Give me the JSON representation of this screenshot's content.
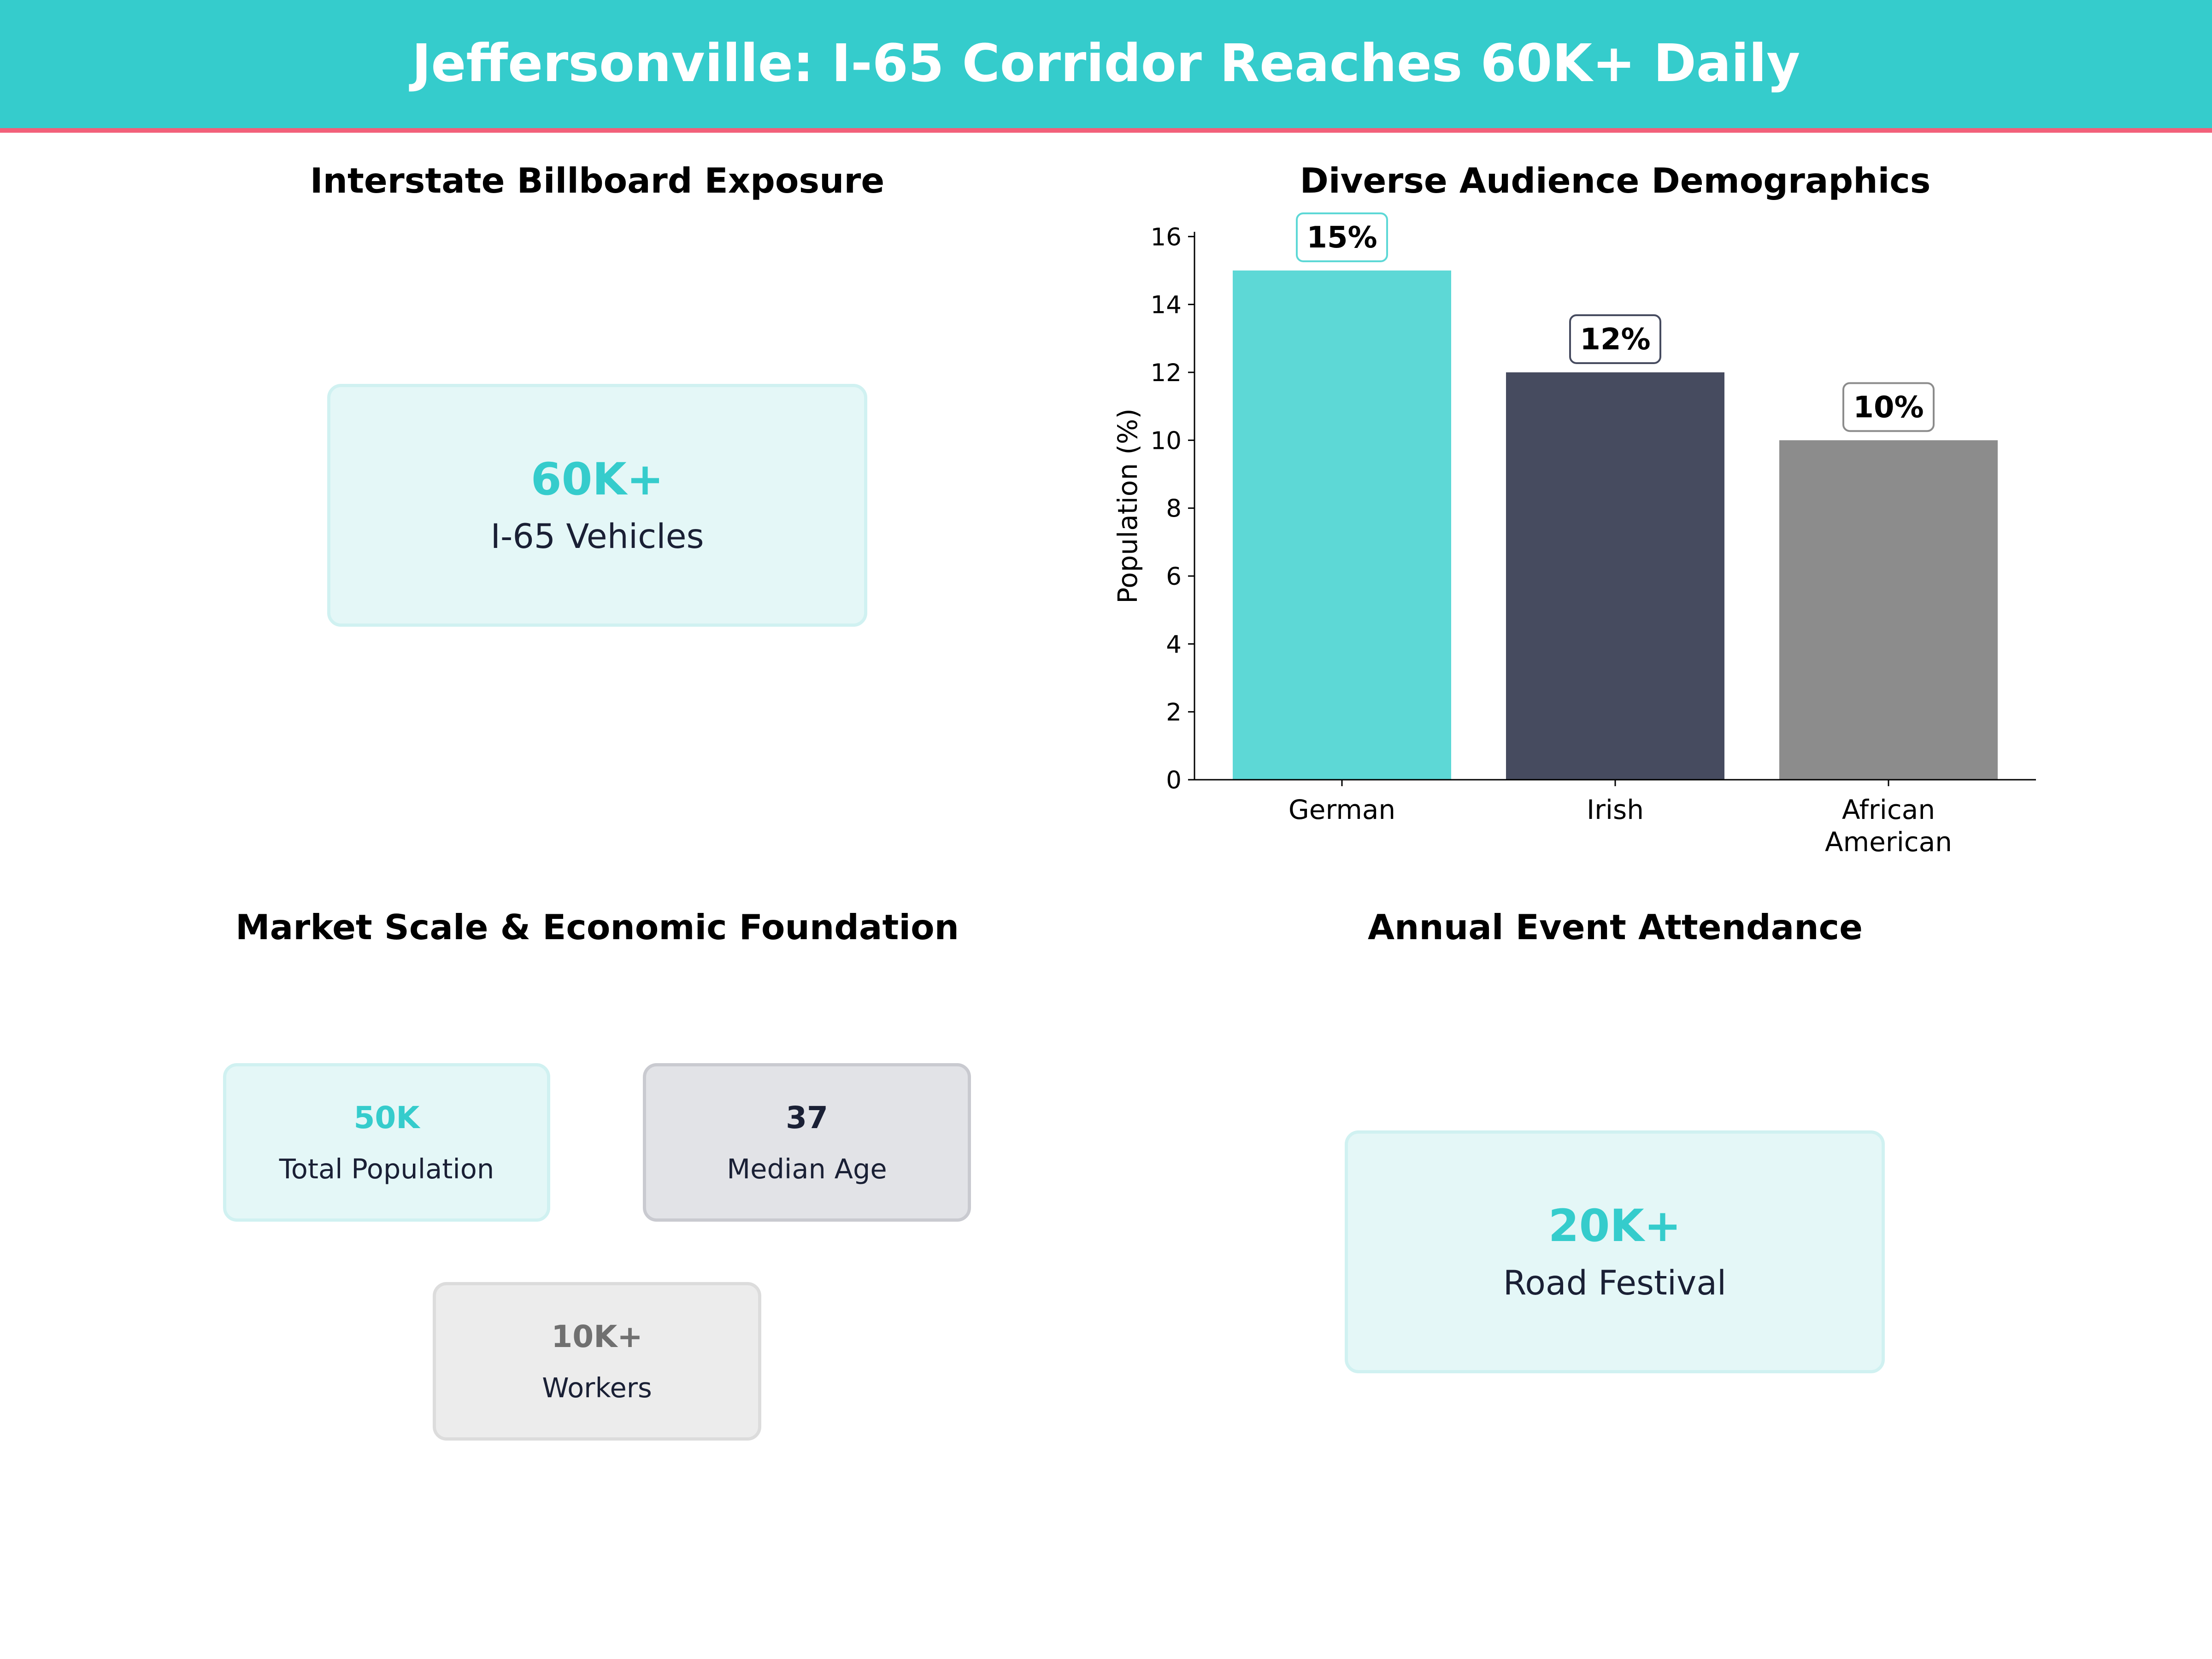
{
  "header": {
    "title": "Jeffersonville: I-65 Corridor Reaches 60K+ Daily",
    "background_color": "#35cccc",
    "stripe_color": "#f2607a"
  },
  "panels": {
    "billboard": {
      "title": "Interstate Billboard Exposure",
      "card": {
        "value": "60K+",
        "label": "I-65 Vehicles",
        "value_color": "#35cccc"
      }
    },
    "demographics": {
      "title": "Diverse Audience Demographics"
    },
    "market": {
      "title": "Market Scale & Economic Foundation",
      "cards": [
        {
          "value": "50K",
          "label": "Total Population",
          "value_color": "#35cccc"
        },
        {
          "value": "37",
          "label": "Median Age",
          "value_color": "#1a2035"
        },
        {
          "value": "10K+",
          "label": "Workers",
          "value_color": "#707070"
        }
      ]
    },
    "events": {
      "title": "Annual Event Attendance",
      "card": {
        "value": "20K+",
        "label": "Road Festival",
        "value_color": "#35cccc"
      }
    }
  },
  "chart_data": {
    "type": "bar",
    "title": "Diverse Audience Demographics",
    "categories": [
      "German",
      "Irish",
      "African\nAmerican"
    ],
    "category_lines": [
      [
        "German"
      ],
      [
        "Irish"
      ],
      [
        "African",
        "American"
      ]
    ],
    "values": [
      15,
      12,
      10
    ],
    "value_labels": [
      "15%",
      "12%",
      "10%"
    ],
    "colors": [
      "#5dd8d6",
      "#464b5f",
      "#8c8c8c"
    ],
    "xlabel": "",
    "ylabel": "Population (%)",
    "ylim": [
      0,
      16.14
    ],
    "yticks": [
      0,
      2,
      4,
      6,
      8,
      10,
      12,
      14,
      16
    ],
    "grid": false,
    "legend": "none"
  }
}
